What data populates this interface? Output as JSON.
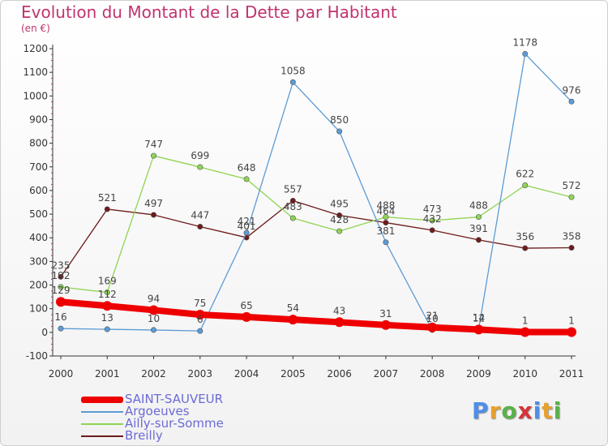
{
  "title": "Evolution du Montant de la Dette par Habitant",
  "unit": "(en €)",
  "logo": {
    "text": "Proxiti",
    "letter_colors": [
      "#4f8ee8",
      "#e8a02a",
      "#5ab04a",
      "#d6333a",
      "#4f8ee8",
      "#e8a02a",
      "#5ab04a"
    ]
  },
  "chart_data": {
    "type": "line",
    "x": [
      "2000",
      "2001",
      "2002",
      "2003",
      "2004",
      "2005",
      "2006",
      "2007",
      "2008",
      "2009",
      "2010",
      "2011"
    ],
    "ylim": [
      -100,
      1200
    ],
    "yticks": [
      -100,
      0,
      100,
      200,
      300,
      400,
      500,
      600,
      700,
      800,
      900,
      1000,
      1100,
      1200
    ],
    "grid": false,
    "legend_position": "bottom-left",
    "series": [
      {
        "name": "SAINT-SAUVEUR",
        "color": "#ee0000",
        "values": [
          129,
          112,
          94,
          75,
          65,
          54,
          43,
          31,
          21,
          12,
          1,
          1
        ]
      },
      {
        "name": "Argoeuves",
        "color": "#5b9bd5",
        "values": [
          16,
          13,
          10,
          6,
          421,
          1058,
          850,
          381,
          10,
          14,
          1178,
          976
        ]
      },
      {
        "name": "Ailly-sur-Somme",
        "color": "#8fd454",
        "values": [
          192,
          169,
          747,
          699,
          648,
          483,
          428,
          488,
          473,
          488,
          622,
          572
        ]
      },
      {
        "name": "Breilly",
        "color": "#6e1b1b",
        "values": [
          235,
          521,
          497,
          447,
          401,
          557,
          495,
          464,
          432,
          391,
          356,
          358
        ]
      }
    ]
  }
}
